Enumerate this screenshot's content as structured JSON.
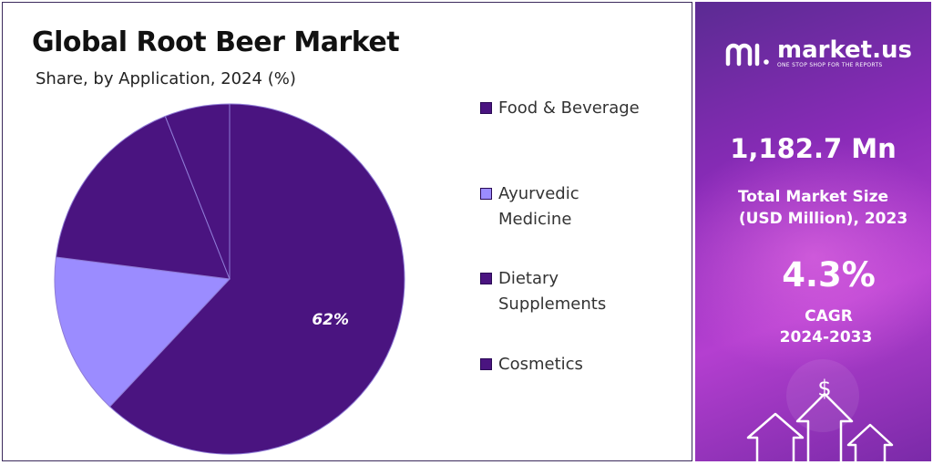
{
  "chart_data": {
    "type": "pie",
    "title": "Global Root Beer Market",
    "subtitle": "Share, by Application, 2024 (%)",
    "slices": [
      {
        "label": "Food & Beverage",
        "value": 62,
        "color": "#4a1480",
        "data_label": "62%"
      },
      {
        "label": "Ayurvedic Medicine",
        "value": 15,
        "color": "#9b8cff",
        "data_label": ""
      },
      {
        "label": "Dietary Supplements",
        "value": 17,
        "color": "#4a1480",
        "data_label": ""
      },
      {
        "label": "Cosmetics",
        "value": 6,
        "color": "#4a1480",
        "data_label": ""
      }
    ],
    "legend_placement": "right"
  },
  "legend": {
    "items": [
      {
        "label": "Food & Beverage",
        "color": "#4a1480"
      },
      {
        "label": "Ayurvedic Medicine",
        "color": "#9b8cff"
      },
      {
        "label": "Dietary Supplements",
        "color": "#4a1480"
      },
      {
        "label": "Cosmetics",
        "color": "#4a1480"
      }
    ]
  },
  "sidebar": {
    "brand_name": "market.us",
    "brand_tagline": "ONE STOP SHOP FOR THE REPORTS",
    "market_size_value": "1,182.7 Mn",
    "market_size_label_1": "Total Market Size",
    "market_size_label_2": "(USD Million), 2023",
    "cagr_value": "4.3%",
    "cagr_label_1": "CAGR",
    "cagr_label_2": "2024-2033",
    "currency_symbol": "$",
    "logo_icon": "market-us-logo-icon",
    "arrow_icon": "growth-arrow-icon"
  }
}
